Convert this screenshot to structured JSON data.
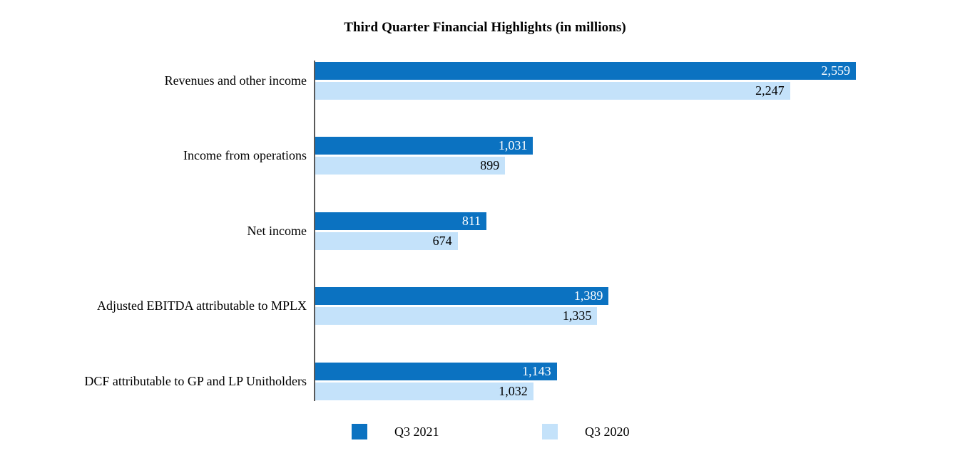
{
  "chart_data": {
    "type": "bar",
    "orientation": "horizontal",
    "title": "Third Quarter Financial Highlights (in millions)",
    "categories": [
      "Revenues and other income",
      "Income from operations",
      "Net income",
      "Adjusted EBITDA attributable to MPLX",
      "DCF attributable to GP and LP Unitholders"
    ],
    "series": [
      {
        "name": "Q3 2021",
        "color": "#0b72c1",
        "values": [
          2559,
          1031,
          811,
          1389,
          1143
        ],
        "labels": [
          "2,559",
          "1,031",
          "811",
          "1,389",
          "1,143"
        ]
      },
      {
        "name": "Q3 2020",
        "color": "#c4e2fa",
        "values": [
          2247,
          899,
          674,
          1335,
          1032
        ],
        "labels": [
          "2,247",
          "899",
          "674",
          "1,335",
          "1,032"
        ]
      }
    ],
    "xlim": [
      0,
      2559
    ],
    "value_labels": "inside-end",
    "grid": false,
    "legend_position": "bottom",
    "axis_line_color": "#595959",
    "background_color": "#ffffff"
  }
}
